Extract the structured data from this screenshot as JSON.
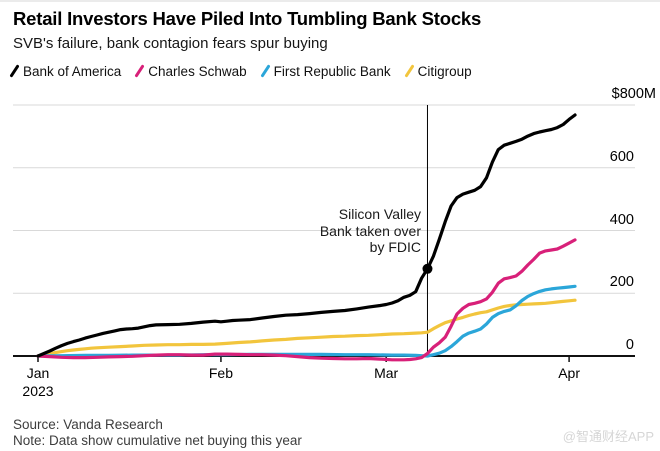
{
  "watermark": "@智通财经APP",
  "chart_data": {
    "type": "line",
    "title": "Retail Investors Have Piled Into Tumbling Bank Stocks",
    "subtitle": "SVB's failure, bank contagion fears spur buying",
    "source": "Source: Vanda Research",
    "note": "Note: Data show cumulative net buying this year",
    "unit": "USD millions, cumulative net retail buying in 2023",
    "x_start_date": "2023-01-01",
    "x_axis_days": [
      0,
      91
    ],
    "ylim": [
      0,
      800
    ],
    "grid": "horizontal",
    "legend_position": "top",
    "y_ticks": [
      {
        "value": 0,
        "label": "0"
      },
      {
        "value": 200,
        "label": "200"
      },
      {
        "value": 400,
        "label": "400"
      },
      {
        "value": 600,
        "label": "600"
      },
      {
        "value": 800,
        "label": "$800M"
      }
    ],
    "x_ticks": [
      {
        "day": 0,
        "label": "Jan",
        "sublabel": "2023"
      },
      {
        "day": 31,
        "label": "Feb"
      },
      {
        "day": 59,
        "label": "Mar"
      },
      {
        "day": 90,
        "label": "Apr"
      }
    ],
    "annotation": {
      "lines": [
        "Silicon Valley",
        "Bank taken over",
        "by FDIC"
      ],
      "day": 66,
      "value": 278,
      "series": "Bank of America"
    },
    "series": [
      {
        "name": "Bank of America",
        "color": "#000000",
        "points": [
          [
            0,
            0
          ],
          [
            1,
            8
          ],
          [
            2,
            16
          ],
          [
            3,
            25
          ],
          [
            4,
            33
          ],
          [
            5,
            40
          ],
          [
            6,
            46
          ],
          [
            7,
            51
          ],
          [
            8,
            57
          ],
          [
            9,
            62
          ],
          [
            10,
            67
          ],
          [
            11,
            72
          ],
          [
            12,
            76
          ],
          [
            13,
            80
          ],
          [
            14,
            84
          ],
          [
            15,
            86
          ],
          [
            16,
            87
          ],
          [
            17,
            89
          ],
          [
            18,
            93
          ],
          [
            19,
            97
          ],
          [
            20,
            99
          ],
          [
            22,
            100
          ],
          [
            24,
            101
          ],
          [
            26,
            104
          ],
          [
            28,
            108
          ],
          [
            30,
            111
          ],
          [
            31,
            109
          ],
          [
            32,
            111
          ],
          [
            33,
            113
          ],
          [
            34,
            114
          ],
          [
            36,
            116
          ],
          [
            38,
            121
          ],
          [
            40,
            126
          ],
          [
            42,
            130
          ],
          [
            44,
            132
          ],
          [
            46,
            135
          ],
          [
            48,
            139
          ],
          [
            50,
            142
          ],
          [
            52,
            145
          ],
          [
            54,
            150
          ],
          [
            56,
            156
          ],
          [
            58,
            161
          ],
          [
            59,
            164
          ],
          [
            60,
            169
          ],
          [
            61,
            176
          ],
          [
            62,
            187
          ],
          [
            63,
            193
          ],
          [
            64,
            205
          ],
          [
            65,
            248
          ],
          [
            66,
            278
          ],
          [
            67,
            318
          ],
          [
            68,
            372
          ],
          [
            69,
            428
          ],
          [
            70,
            478
          ],
          [
            71,
            505
          ],
          [
            72,
            516
          ],
          [
            73,
            522
          ],
          [
            74,
            528
          ],
          [
            75,
            540
          ],
          [
            76,
            568
          ],
          [
            77,
            618
          ],
          [
            78,
            658
          ],
          [
            79,
            672
          ],
          [
            80,
            678
          ],
          [
            81,
            684
          ],
          [
            82,
            691
          ],
          [
            83,
            701
          ],
          [
            84,
            709
          ],
          [
            85,
            714
          ],
          [
            86,
            718
          ],
          [
            87,
            722
          ],
          [
            88,
            728
          ],
          [
            89,
            738
          ],
          [
            90,
            754
          ],
          [
            91,
            768
          ]
        ]
      },
      {
        "name": "Charles Schwab",
        "color": "#d82079",
        "points": [
          [
            0,
            0
          ],
          [
            2,
            -2
          ],
          [
            4,
            -4
          ],
          [
            6,
            -5
          ],
          [
            8,
            -5
          ],
          [
            10,
            -4
          ],
          [
            12,
            -3
          ],
          [
            14,
            -2
          ],
          [
            16,
            -1
          ],
          [
            18,
            1
          ],
          [
            20,
            3
          ],
          [
            22,
            4
          ],
          [
            24,
            4
          ],
          [
            26,
            3
          ],
          [
            28,
            3
          ],
          [
            30,
            6
          ],
          [
            32,
            6
          ],
          [
            34,
            5
          ],
          [
            36,
            4
          ],
          [
            38,
            4
          ],
          [
            40,
            3
          ],
          [
            42,
            1
          ],
          [
            44,
            -2
          ],
          [
            46,
            -5
          ],
          [
            48,
            -7
          ],
          [
            50,
            -8
          ],
          [
            52,
            -9
          ],
          [
            54,
            -9
          ],
          [
            56,
            -8
          ],
          [
            58,
            -10
          ],
          [
            60,
            -12
          ],
          [
            62,
            -12
          ],
          [
            63,
            -11
          ],
          [
            64,
            -9
          ],
          [
            65,
            -5
          ],
          [
            66,
            8
          ],
          [
            67,
            28
          ],
          [
            68,
            42
          ],
          [
            69,
            60
          ],
          [
            70,
            95
          ],
          [
            71,
            134
          ],
          [
            72,
            152
          ],
          [
            73,
            164
          ],
          [
            74,
            168
          ],
          [
            75,
            173
          ],
          [
            76,
            182
          ],
          [
            77,
            203
          ],
          [
            78,
            232
          ],
          [
            79,
            246
          ],
          [
            80,
            250
          ],
          [
            81,
            255
          ],
          [
            82,
            270
          ],
          [
            83,
            290
          ],
          [
            84,
            308
          ],
          [
            85,
            328
          ],
          [
            86,
            335
          ],
          [
            87,
            338
          ],
          [
            88,
            341
          ],
          [
            89,
            350
          ],
          [
            90,
            360
          ],
          [
            91,
            370
          ]
        ]
      },
      {
        "name": "First Republic Bank",
        "color": "#2ba6d9",
        "points": [
          [
            0,
            0
          ],
          [
            4,
            1
          ],
          [
            8,
            2
          ],
          [
            12,
            2
          ],
          [
            16,
            3
          ],
          [
            20,
            3
          ],
          [
            24,
            3
          ],
          [
            28,
            4
          ],
          [
            32,
            4
          ],
          [
            36,
            5
          ],
          [
            40,
            5
          ],
          [
            44,
            5
          ],
          [
            48,
            5
          ],
          [
            52,
            4
          ],
          [
            56,
            4
          ],
          [
            60,
            3
          ],
          [
            62,
            3
          ],
          [
            64,
            2
          ],
          [
            65,
            1
          ],
          [
            66,
            0
          ],
          [
            67,
            4
          ],
          [
            68,
            9
          ],
          [
            69,
            17
          ],
          [
            70,
            30
          ],
          [
            71,
            46
          ],
          [
            72,
            63
          ],
          [
            73,
            73
          ],
          [
            74,
            79
          ],
          [
            75,
            86
          ],
          [
            76,
            102
          ],
          [
            77,
            123
          ],
          [
            78,
            135
          ],
          [
            79,
            142
          ],
          [
            80,
            147
          ],
          [
            81,
            160
          ],
          [
            82,
            177
          ],
          [
            83,
            190
          ],
          [
            84,
            199
          ],
          [
            85,
            206
          ],
          [
            86,
            211
          ],
          [
            87,
            214
          ],
          [
            88,
            216
          ],
          [
            89,
            218
          ],
          [
            90,
            220
          ],
          [
            91,
            222
          ]
        ]
      },
      {
        "name": "Citigroup",
        "color": "#f2c53d",
        "points": [
          [
            0,
            0
          ],
          [
            1,
            3
          ],
          [
            2,
            7
          ],
          [
            3,
            11
          ],
          [
            4,
            14
          ],
          [
            5,
            17
          ],
          [
            6,
            19
          ],
          [
            7,
            21
          ],
          [
            8,
            23
          ],
          [
            9,
            25
          ],
          [
            10,
            26
          ],
          [
            12,
            28
          ],
          [
            14,
            30
          ],
          [
            16,
            32
          ],
          [
            18,
            34
          ],
          [
            20,
            35
          ],
          [
            22,
            36
          ],
          [
            24,
            36
          ],
          [
            26,
            37
          ],
          [
            28,
            37
          ],
          [
            30,
            38
          ],
          [
            32,
            40
          ],
          [
            34,
            43
          ],
          [
            36,
            45
          ],
          [
            38,
            48
          ],
          [
            40,
            51
          ],
          [
            42,
            53
          ],
          [
            44,
            56
          ],
          [
            46,
            58
          ],
          [
            48,
            60
          ],
          [
            50,
            62
          ],
          [
            52,
            63
          ],
          [
            54,
            65
          ],
          [
            56,
            66
          ],
          [
            58,
            68
          ],
          [
            60,
            70
          ],
          [
            62,
            71
          ],
          [
            64,
            73
          ],
          [
            65,
            74
          ],
          [
            66,
            76
          ],
          [
            67,
            87
          ],
          [
            68,
            97
          ],
          [
            69,
            106
          ],
          [
            70,
            112
          ],
          [
            71,
            118
          ],
          [
            72,
            123
          ],
          [
            73,
            129
          ],
          [
            74,
            134
          ],
          [
            75,
            138
          ],
          [
            76,
            141
          ],
          [
            77,
            147
          ],
          [
            78,
            153
          ],
          [
            79,
            158
          ],
          [
            80,
            161
          ],
          [
            81,
            163
          ],
          [
            82,
            164
          ],
          [
            83,
            165
          ],
          [
            84,
            166
          ],
          [
            85,
            167
          ],
          [
            86,
            168
          ],
          [
            87,
            170
          ],
          [
            88,
            172
          ],
          [
            89,
            174
          ],
          [
            90,
            176
          ],
          [
            91,
            178
          ]
        ]
      }
    ]
  }
}
